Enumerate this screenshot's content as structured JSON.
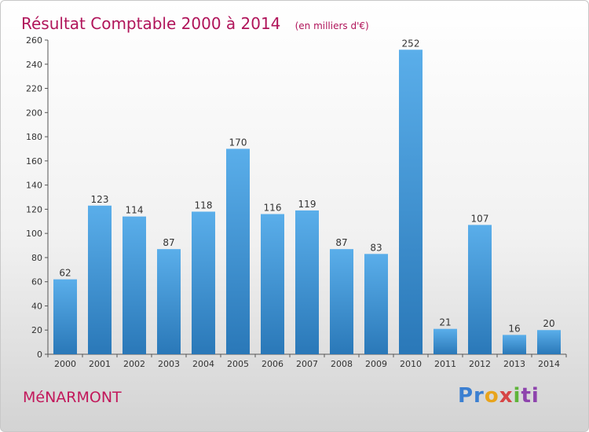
{
  "chart_data": {
    "type": "bar",
    "title": "Résultat Comptable 2000 à 2014",
    "subtitle": "(en milliers d'€)",
    "xlabel": "",
    "ylabel": "",
    "categories": [
      "2000",
      "2001",
      "2002",
      "2003",
      "2004",
      "2005",
      "2006",
      "2007",
      "2008",
      "2009",
      "2010",
      "2011",
      "2012",
      "2013",
      "2014"
    ],
    "values": [
      62,
      123,
      114,
      87,
      118,
      170,
      116,
      119,
      87,
      83,
      252,
      21,
      107,
      16,
      20
    ],
    "ylim": [
      0,
      260
    ],
    "yticks": [
      0,
      20,
      40,
      60,
      80,
      100,
      120,
      140,
      160,
      180,
      200,
      220,
      240,
      260
    ],
    "grid": false,
    "bar_color_top": "#5aaeea",
    "bar_color_bottom": "#2a78b8"
  },
  "footer": {
    "commune": "MéNARMONT",
    "logo_parts": [
      "Pr",
      "o",
      "x",
      "i",
      "ti"
    ]
  },
  "colors": {
    "title": "#b0145a",
    "commune": "#c2185b"
  }
}
